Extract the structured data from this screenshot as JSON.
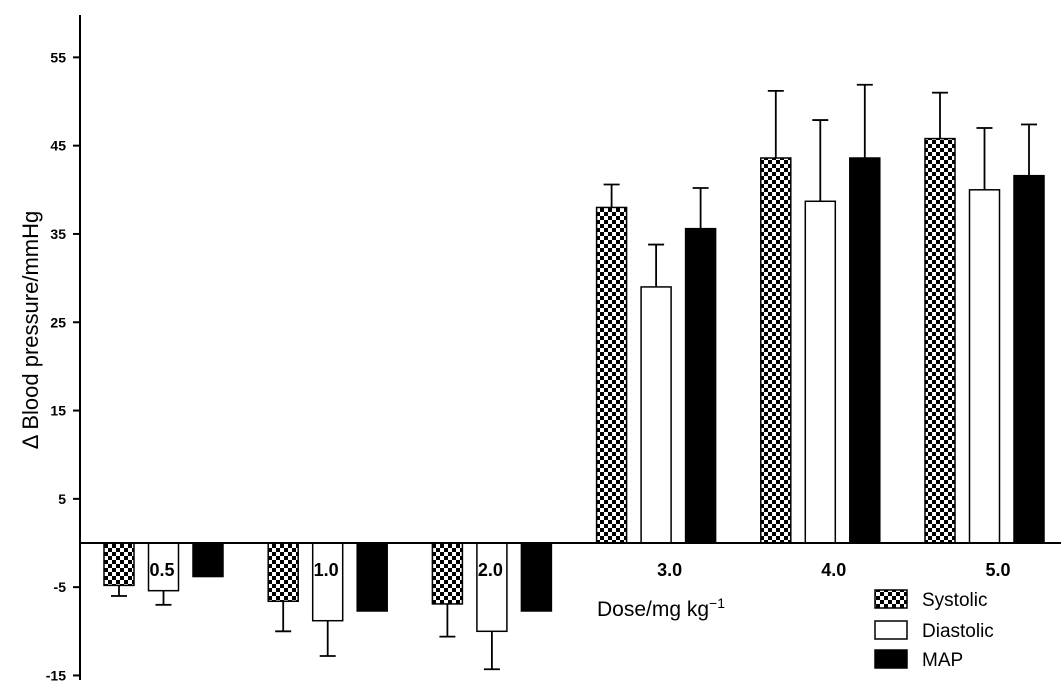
{
  "chart_data": {
    "type": "bar",
    "ylabel": "Δ Blood pressure/mmHg",
    "xlabel_main": "Dose/mg kg",
    "xlabel_sup": "−1",
    "categories": [
      "0.5",
      "1.0",
      "2.0",
      "3.0",
      "4.0",
      "5.0"
    ],
    "ylim": [
      -15,
      60
    ],
    "yticks": [
      55,
      45,
      35,
      25,
      15,
      5,
      -5,
      -15
    ],
    "ytick_labels": [
      "55",
      "45",
      "35",
      "25",
      "15",
      "5",
      "-5",
      "-15"
    ],
    "grid": false,
    "legend_position": "bottom-right",
    "series": [
      {
        "name": "Systolic",
        "fill": "checker",
        "values": [
          -4.8,
          -6.6,
          -6.9,
          38.0,
          43.6,
          45.8
        ],
        "errors": [
          1.2,
          3.4,
          3.7,
          2.6,
          7.6,
          5.2
        ]
      },
      {
        "name": "Diastolic",
        "fill": "white",
        "values": [
          -5.4,
          -8.8,
          -10.0,
          29.0,
          38.7,
          40.0
        ],
        "errors": [
          1.6,
          4.0,
          4.3,
          4.8,
          9.2,
          7.0
        ]
      },
      {
        "name": "MAP",
        "fill": "black",
        "values": [
          -3.8,
          -7.7,
          -7.7,
          35.6,
          43.6,
          41.6
        ],
        "errors": [
          0,
          0,
          0,
          4.6,
          8.3,
          5.8
        ]
      }
    ],
    "colors": {
      "bar_stroke": "#000000",
      "checker_dark": "#000000",
      "checker_light": "#ffffff",
      "map_fill": "#000000",
      "diastolic_fill": "#ffffff"
    }
  }
}
